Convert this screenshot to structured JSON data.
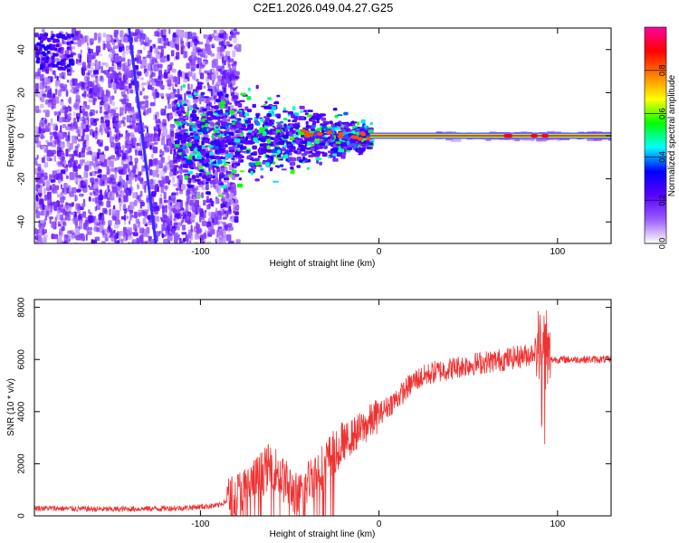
{
  "chart_data": [
    {
      "type": "heatmap",
      "title": "C2E1.2026.049.04.27.G25",
      "xlabel": "Height of straight line (km)",
      "ylabel": "Frequency (Hz)",
      "xlim": [
        -193,
        130
      ],
      "ylim": [
        -50,
        50
      ],
      "xticks": [
        -100,
        0,
        100
      ],
      "xtick_labels": [
        "-100",
        "0",
        "100"
      ],
      "yticks": [
        -40,
        -20,
        0,
        20,
        40
      ],
      "ytick_labels": [
        "-40",
        "-20",
        "0",
        "20",
        "40"
      ],
      "colorbar": {
        "label": "Normalized spectral amplitude",
        "range": [
          0,
          1
        ],
        "ticks": [
          0.0,
          0.2,
          0.4,
          0.6,
          0.8
        ],
        "tick_labels": [
          "0.0",
          "0.2",
          "0.4",
          "0.6",
          "0.8"
        ],
        "colors": [
          "#ffffff",
          "#9a5cff",
          "#5a00ff",
          "#0000ff",
          "#00ffff",
          "#00ff00",
          "#ffff00",
          "#ff8000",
          "#ff0000",
          "#ff00a0"
        ]
      },
      "features": {
        "noise_region_x": [
          -193,
          -80
        ],
        "carrier_line_start_x": -5,
        "carrier_frequency": 0,
        "drifting_line": {
          "x_start": -140,
          "y_start": 50,
          "x_end": -125,
          "y_end": -50
        }
      }
    },
    {
      "type": "line",
      "xlabel": "Height of straight line (km)",
      "ylabel": "SNR (10 * v/v)",
      "xlim": [
        -193,
        130
      ],
      "ylim": [
        0,
        8300
      ],
      "xticks": [
        -100,
        0,
        100
      ],
      "xtick_labels": [
        "-100",
        "0",
        "100"
      ],
      "yticks": [
        0,
        2000,
        4000,
        6000,
        8000
      ],
      "ytick_labels": [
        "0",
        "2000",
        "4000",
        "6000",
        "8000"
      ],
      "color": "#ee3333",
      "profile": {
        "x": [
          -193,
          -150,
          -110,
          -90,
          -82,
          -72,
          -60,
          -55,
          -45,
          -38,
          -30,
          -25,
          -20,
          -10,
          0,
          10,
          20,
          30,
          50,
          70,
          85,
          90,
          92,
          95,
          100,
          130
        ],
        "y": [
          300,
          250,
          300,
          400,
          700,
          1200,
          2000,
          1500,
          700,
          1500,
          2000,
          2500,
          2800,
          3300,
          3900,
          4500,
          5200,
          5500,
          5800,
          6000,
          6200,
          6600,
          6500,
          6000,
          6000,
          6000
        ]
      }
    }
  ]
}
